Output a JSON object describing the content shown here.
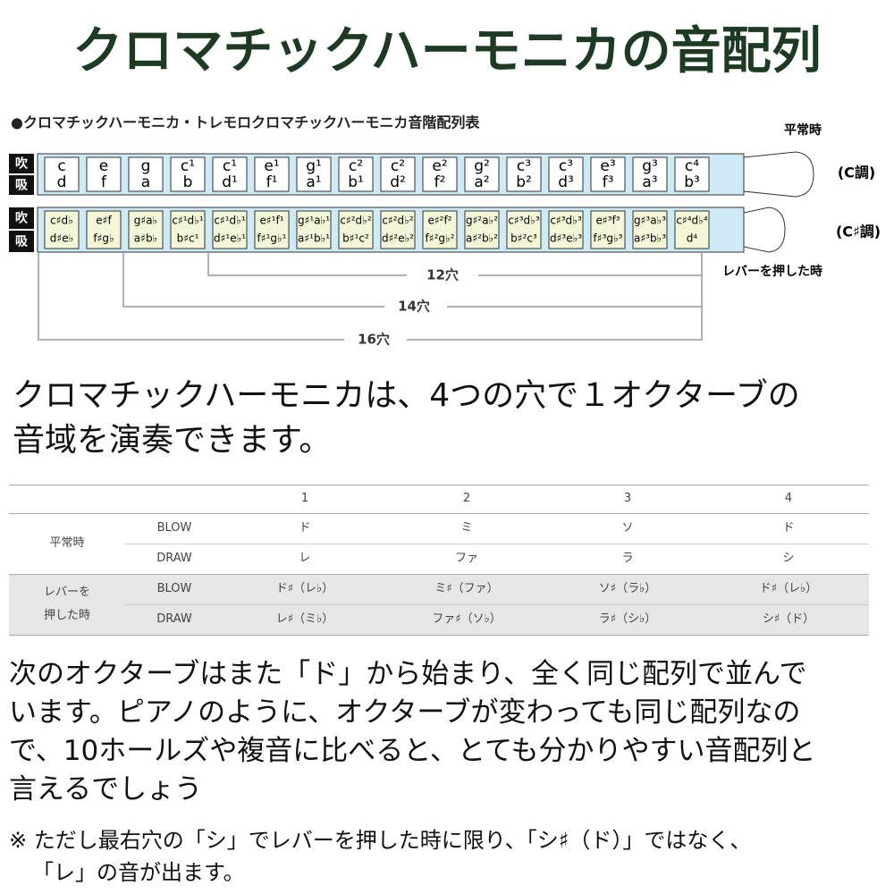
{
  "header": {
    "title": "クロマチックハーモニカの音配列"
  },
  "diagram": {
    "caption": "●クロマチックハーモニカ・トレモロクロマチックハーモニカ音階配列表",
    "blow_label": "吹",
    "draw_label": "吸",
    "normal_label": "平常時",
    "lever_label": "レバーを押した時",
    "c_key": "(C調)",
    "cs_key": "(C♯調)",
    "normal": {
      "blow": [
        "c",
        "e",
        "g",
        "c¹",
        "c¹",
        "e¹",
        "g¹",
        "c²",
        "c²",
        "e²",
        "g²",
        "c³",
        "c³",
        "e³",
        "g³",
        "c⁴"
      ],
      "draw": [
        "d",
        "f",
        "a",
        "b",
        "d¹",
        "f¹",
        "a¹",
        "b¹",
        "d²",
        "f²",
        "a²",
        "b²",
        "d³",
        "f³",
        "a³",
        "b³"
      ]
    },
    "lever": {
      "blow": [
        "c♯d♭",
        "e♯f",
        "g♯a♭",
        "c♯¹d♭¹",
        "c♯¹d♭¹",
        "e♯¹f¹",
        "g♯¹a♭¹",
        "c♯²d♭²",
        "c♯²d♭²",
        "e♯²f²",
        "g♯²a♭²",
        "c♯³d♭³",
        "c♯³d♭³",
        "e♯³f³",
        "g♯³a♭³",
        "c♯⁴d♭⁴"
      ],
      "draw": [
        "d♯e♭",
        "f♯g♭",
        "a♯b♭",
        "b♯c¹",
        "d♯¹e♭¹",
        "f♯¹g♭¹",
        "a♯¹b♭¹",
        "b♯¹c²",
        "d♯²e♭²",
        "f♯²g♭²",
        "a♯²b♭²",
        "b♯²c³",
        "d♯³e♭³",
        "f♯³g♭³",
        "a♯³b♭³",
        "d⁴"
      ]
    },
    "ranges": [
      "12穴",
      "14穴",
      "16穴"
    ]
  },
  "paragraph1": [
    "クロマチックハーモニカは、4つの穴で１オクターブの",
    "音域を演奏できます。"
  ],
  "table": {
    "header": [
      "1",
      "2",
      "3",
      "4"
    ],
    "groups": [
      {
        "label": [
          "平常時"
        ],
        "rows": [
          [
            "BLOW",
            "ド",
            "ミ",
            "ソ",
            "ド"
          ],
          [
            "DRAW",
            "レ",
            "ファ",
            "ラ",
            "シ"
          ]
        ]
      },
      {
        "label": [
          "レバーを",
          "押した時"
        ],
        "rows": [
          [
            "BLOW",
            "ド♯（レ♭）",
            "ミ♯（ファ）",
            "ソ♯（ラ♭）",
            "ド♯（レ♭）"
          ],
          [
            "DRAW",
            "レ♯（ミ♭）",
            "ファ♯（ソ♭）",
            "ラ♯（シ♭）",
            "シ♯（ド）"
          ]
        ]
      }
    ]
  },
  "paragraph2": [
    "次のオクターブはまた「ド」から始まり、全く同じ配列で並んで",
    "います。ピアノのように、オクターブが変わっても同じ配列なの",
    "で、10ホールズや複音に比べると、とても分かりやすい音配列と",
    "言えるでしょう"
  ],
  "note": [
    "※ ただし最右穴の「シ」でレバーを押した時に限り、「シ♯（ド）」ではなく、",
    "「レ」の音が出ます。"
  ]
}
